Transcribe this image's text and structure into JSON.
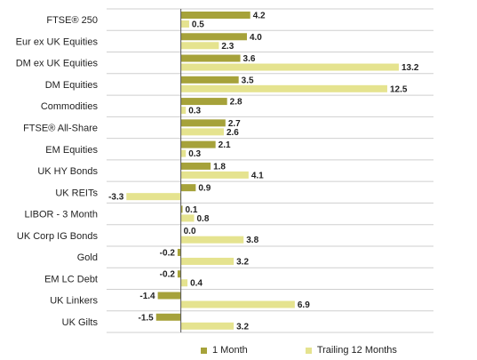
{
  "chart_data": {
    "type": "bar",
    "orientation": "horizontal",
    "categories": [
      "FTSE® 250",
      "Eur ex UK Equities",
      "DM ex UK Equities",
      "DM Equities",
      "Commodities",
      "FTSE® All-Share",
      "EM Equities",
      "UK HY Bonds",
      "UK REITs",
      "LIBOR - 3 Month",
      "UK Corp IG Bonds",
      "Gold",
      "EM LC Debt",
      "UK Linkers",
      "UK Gilts"
    ],
    "series": [
      {
        "name": "1 Month",
        "color": "#a6a23a",
        "values": [
          4.2,
          4.0,
          3.6,
          3.5,
          2.8,
          2.7,
          2.1,
          1.8,
          0.9,
          0.1,
          0.0,
          -0.2,
          -0.2,
          -1.4,
          -1.5
        ]
      },
      {
        "name": "Trailing 12 Months",
        "color": "#e5e38f",
        "values": [
          0.5,
          2.3,
          13.2,
          12.5,
          0.3,
          2.6,
          0.3,
          4.1,
          -3.3,
          0.8,
          3.8,
          3.2,
          0.4,
          6.9,
          3.2
        ]
      }
    ],
    "labels_1m": [
      "4.2",
      "4.0",
      "3.6",
      "3.5",
      "2.8",
      "2.7",
      "2.1",
      "1.8",
      "0.9",
      "0.1",
      "0.0",
      "-0.2",
      "-0.2",
      "-1.4",
      "-1.5"
    ],
    "labels_12m": [
      "0.5",
      "2.3",
      "13.2",
      "12.5",
      "0.3",
      "2.6",
      "0.3",
      "4.1",
      "-3.3",
      "0.8",
      "3.8",
      "3.2",
      "0.4",
      "6.9",
      "3.2"
    ],
    "xlim": [
      -4.5,
      15.3
    ],
    "grid": "horizontal separators",
    "legend_position": "bottom"
  }
}
